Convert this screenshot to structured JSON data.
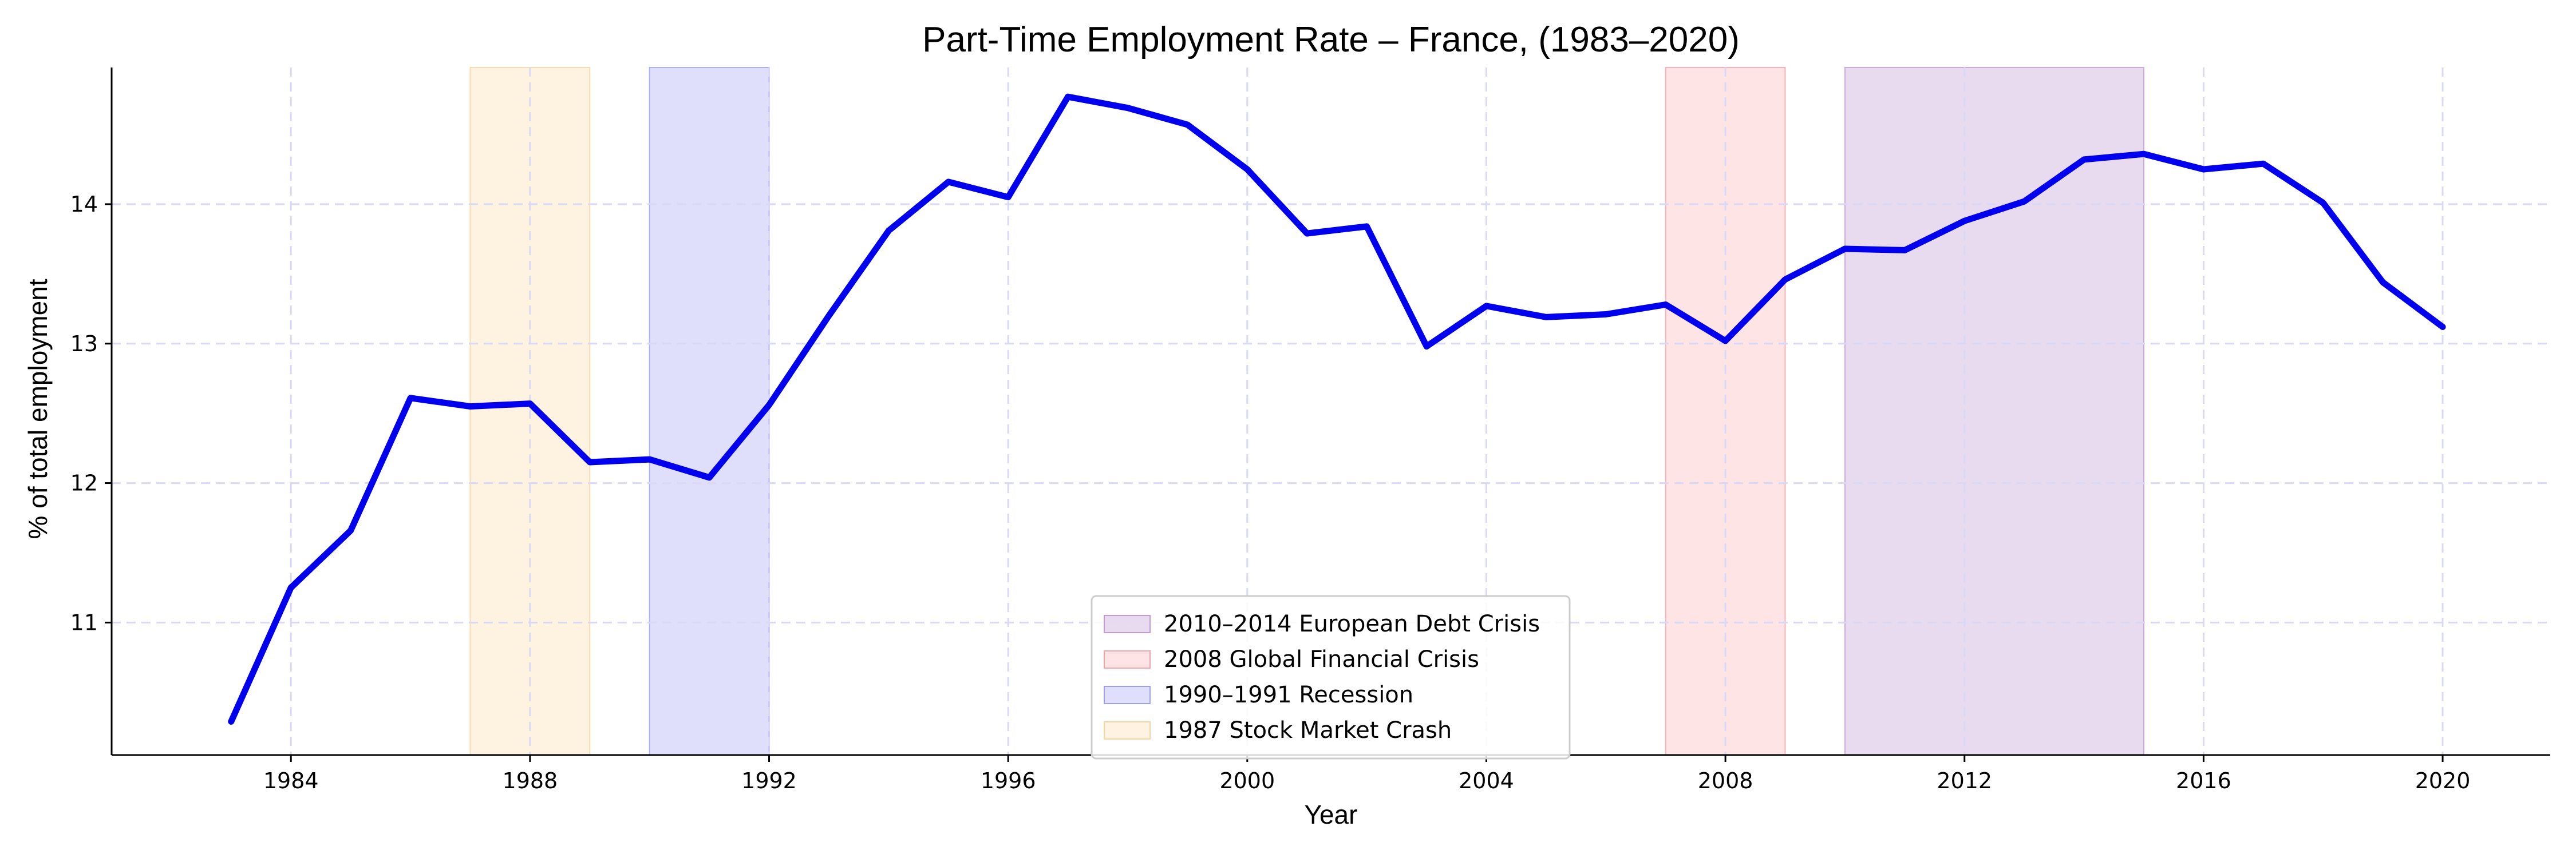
{
  "chart_data": {
    "type": "line",
    "title": "Part-Time Employment Rate – France, (1983–2020)",
    "xlabel": "Year",
    "ylabel": "% of total employment",
    "xlim": [
      1981.0,
      2021.8
    ],
    "ylim": [
      10.05,
      14.98
    ],
    "grid": true,
    "legend_position": "bottom-center",
    "x_ticks": [
      1984,
      1988,
      1992,
      1996,
      2000,
      2004,
      2008,
      2012,
      2016,
      2020
    ],
    "y_ticks": [
      11,
      12,
      13,
      14
    ],
    "series": [
      {
        "color": "#0000ee",
        "x": [
          1983,
          1984,
          1985,
          1986,
          1987,
          1988,
          1989,
          1990,
          1991,
          1992,
          1993,
          1994,
          1995,
          1996,
          1997,
          1998,
          1999,
          2000,
          2001,
          2002,
          2003,
          2004,
          2005,
          2006,
          2007,
          2008,
          2009,
          2010,
          2011,
          2012,
          2013,
          2014,
          2015,
          2016,
          2017,
          2018,
          2019,
          2020
        ],
        "values": [
          10.29,
          11.25,
          11.66,
          12.61,
          12.55,
          12.57,
          12.15,
          12.17,
          12.04,
          12.56,
          13.2,
          13.81,
          14.16,
          14.05,
          14.77,
          14.69,
          14.57,
          14.25,
          13.79,
          13.84,
          12.98,
          13.27,
          13.19,
          13.21,
          13.28,
          13.02,
          13.46,
          13.68,
          13.67,
          13.88,
          14.02,
          14.32,
          14.36,
          14.25,
          14.29,
          14.01,
          13.44,
          13.12
        ]
      }
    ],
    "shaded_periods": [
      {
        "label": "2010–2014 European Debt Crisis",
        "start": 2010,
        "end": 2015,
        "fill": "#d7bde2",
        "edge": "#c39bd3"
      },
      {
        "label": "2008 Global Financial Crisis",
        "start": 2007,
        "end": 2009,
        "fill": "#ffcdd2",
        "edge": "#f5a3ac"
      },
      {
        "label": "1990–1991 Recession",
        "start": 1990,
        "end": 1992,
        "fill": "#c5c5fa",
        "edge": "#a0a0f0"
      },
      {
        "label": "1987 Stock Market Crash",
        "start": 1987,
        "end": 1989,
        "fill": "#fde9c9",
        "edge": "#f5d6a3"
      }
    ]
  }
}
